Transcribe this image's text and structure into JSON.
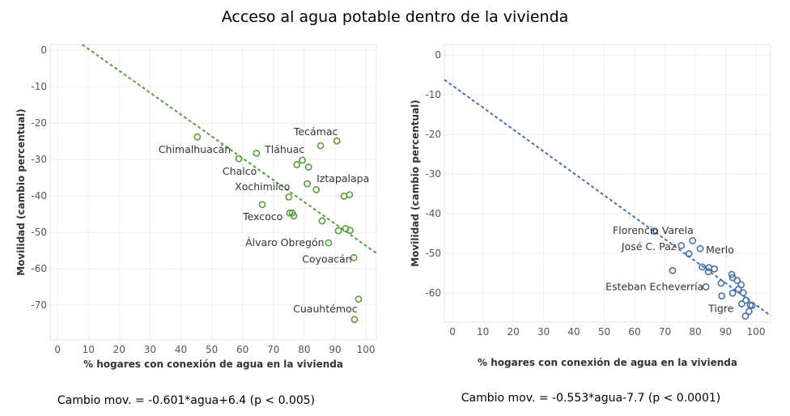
{
  "title": "Acceso al agua potable dentro de la vivienda",
  "chart_data": [
    {
      "type": "scatter",
      "xlabel": "% hogares con conexión de agua en la vivienda",
      "ylabel": "Movilidad (cambio percentual)",
      "xlim": [
        -2.4,
        103.4
      ],
      "ylim": [
        -79.6,
        1.6
      ],
      "xticks": [
        0,
        10,
        20,
        30,
        40,
        50,
        60,
        70,
        80,
        90,
        100
      ],
      "yticks": [
        0,
        -10,
        -20,
        -30,
        -40,
        -50,
        -60,
        -70
      ],
      "grid": true,
      "color": "#5a9e3e",
      "trend": {
        "slope": -0.601,
        "intercept": 6.4
      },
      "formula": "Cambio mov. = -0.601*agua+6.4 (p < 0.005)",
      "points": [
        [
          45.3,
          -23.8
        ],
        [
          58.8,
          -29.8
        ],
        [
          64.5,
          -28.3
        ],
        [
          85.3,
          -26.2
        ],
        [
          90.6,
          -24.9
        ],
        [
          79.4,
          -30.2
        ],
        [
          77.6,
          -31.4
        ],
        [
          81.4,
          -32.1
        ],
        [
          81.0,
          -36.7
        ],
        [
          83.9,
          -38.3
        ],
        [
          92.9,
          -40.1
        ],
        [
          94.7,
          -39.7
        ],
        [
          75.0,
          -40.3
        ],
        [
          66.4,
          -42.4
        ],
        [
          75.3,
          -44.7
        ],
        [
          76.1,
          -44.7
        ],
        [
          76.6,
          -45.5
        ],
        [
          85.8,
          -46.9
        ],
        [
          91.1,
          -49.6
        ],
        [
          93.4,
          -49.0
        ],
        [
          94.9,
          -49.5
        ],
        [
          87.9,
          -52.9
        ],
        [
          96.1,
          -57.0
        ],
        [
          97.6,
          -68.4
        ],
        [
          96.3,
          -74.0
        ]
      ],
      "labels": [
        {
          "text": "Chimalhuacán",
          "x": 56.2,
          "y": -28.2,
          "anchor": "end"
        },
        {
          "text": "Tecámac",
          "x": 76.6,
          "y": -23.3,
          "anchor": "start"
        },
        {
          "text": "Tláhuac",
          "x": 67.2,
          "y": -28.2,
          "anchor": "start"
        },
        {
          "text": "Chalco",
          "x": 53.5,
          "y": -34.2,
          "anchor": "start"
        },
        {
          "text": "Xochimilco",
          "x": 57.5,
          "y": -38.4,
          "anchor": "start"
        },
        {
          "text": "Iztapalapa",
          "x": 84.0,
          "y": -36.2,
          "anchor": "start"
        },
        {
          "text": "Texcoco",
          "x": 60.1,
          "y": -46.7,
          "anchor": "start"
        },
        {
          "text": "Álvaro Obregón",
          "x": 60.9,
          "y": -53.8,
          "anchor": "start"
        },
        {
          "text": "Coyoacán",
          "x": 79.3,
          "y": -58.4,
          "anchor": "start"
        },
        {
          "text": "Cuauhtémoc",
          "x": 76.4,
          "y": -72.0,
          "anchor": "start"
        }
      ]
    },
    {
      "type": "scatter",
      "xlabel": "% hogares con conexión de agua en la vivienda",
      "ylabel": "Movilidad (cambio percentual)",
      "xlim": [
        -2.7,
        104.8
      ],
      "ylim": [
        -67.3,
        2.65
      ],
      "xticks": [
        0,
        10,
        20,
        30,
        40,
        50,
        60,
        70,
        80,
        90,
        100
      ],
      "yticks": [
        0,
        -10,
        -20,
        -30,
        -40,
        -50,
        -60
      ],
      "grid": true,
      "color": "#4a72a8",
      "trend": {
        "slope": -0.553,
        "intercept": -7.7
      },
      "formula": "Cambio mov. = -0.553*agua-7.7 (p < 0.0001)",
      "points": [
        [
          66.5,
          -44.4
        ],
        [
          79.1,
          -46.8
        ],
        [
          75.4,
          -48.0
        ],
        [
          81.6,
          -48.8
        ],
        [
          77.9,
          -50.1
        ],
        [
          72.5,
          -54.3
        ],
        [
          82.3,
          -53.4
        ],
        [
          84.5,
          -53.6
        ],
        [
          86.3,
          -53.9
        ],
        [
          84.3,
          -54.6
        ],
        [
          92.0,
          -55.3
        ],
        [
          92.3,
          -56.1
        ],
        [
          93.8,
          -56.8
        ],
        [
          95.1,
          -57.9
        ],
        [
          88.5,
          -57.5
        ],
        [
          83.5,
          -58.4
        ],
        [
          94.2,
          -59.0
        ],
        [
          95.8,
          -59.9
        ],
        [
          92.3,
          -60.0
        ],
        [
          88.7,
          -60.7
        ],
        [
          96.7,
          -61.8
        ],
        [
          95.3,
          -62.7
        ],
        [
          98.1,
          -63.0
        ],
        [
          98.7,
          -63.1
        ],
        [
          97.7,
          -64.6
        ],
        [
          96.5,
          -65.8
        ]
      ],
      "labels": [
        {
          "text": "Florencio Varela",
          "x": 52.8,
          "y": -45.1,
          "anchor": "start"
        },
        {
          "text": "José C. Paz",
          "x": 55.7,
          "y": -49.2,
          "anchor": "start"
        },
        {
          "text": "Merlo",
          "x": 83.5,
          "y": -50.0,
          "anchor": "start"
        },
        {
          "text": "Esteban Echeverría",
          "x": 50.4,
          "y": -59.2,
          "anchor": "start"
        },
        {
          "text": "Tigre",
          "x": 84.3,
          "y": -64.7,
          "anchor": "start"
        }
      ]
    }
  ]
}
